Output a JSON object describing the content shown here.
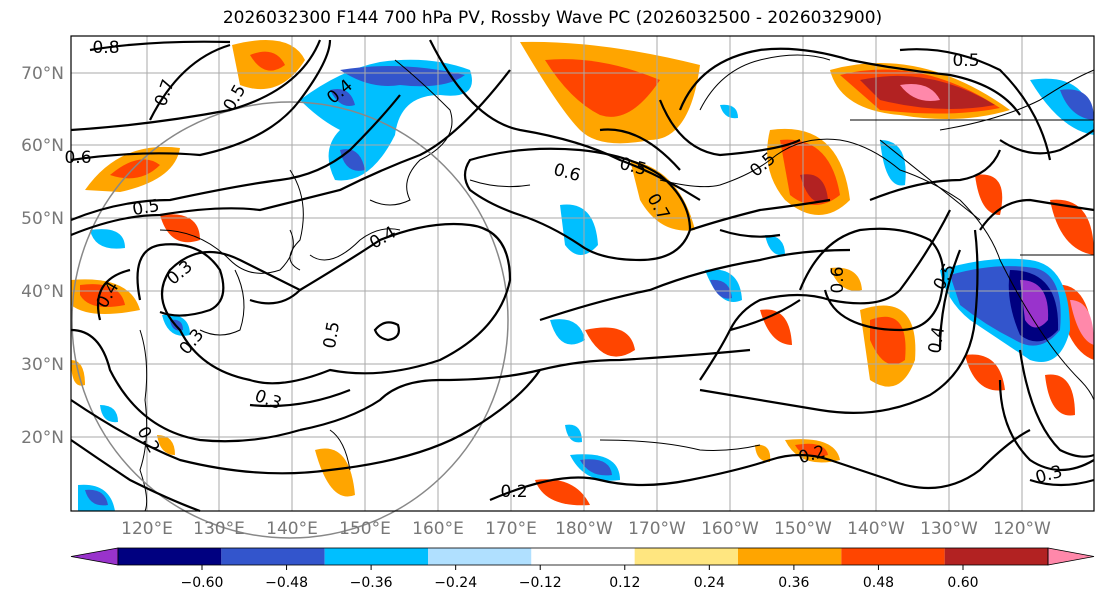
{
  "title": "2026032300 F144 700 hPa PV, Rossby Wave PC (2026032500 - 2026032900)",
  "map": {
    "lat_labels": [
      "70°N",
      "60°N",
      "50°N",
      "40°N",
      "30°N",
      "20°N"
    ],
    "lon_labels": [
      "120°E",
      "130°E",
      "140°E",
      "150°E",
      "160°E",
      "170°E",
      "180°W",
      "170°W",
      "160°W",
      "150°W",
      "140°W",
      "130°W",
      "120°W"
    ],
    "contour_labels": [
      "0.8",
      "0.7",
      "0.5",
      "0.4",
      "0.6",
      "0.5",
      "0.3",
      "0.4",
      "0.3",
      "0.4",
      "0.5",
      "0.3",
      "0.2",
      "0.6",
      "0.5",
      "0.7",
      "0.6",
      "0.5",
      "0.4",
      "0.2",
      "0.3",
      "0.2",
      "0.5",
      "0.5"
    ]
  },
  "colorbar": {
    "ticks": [
      "−0.60",
      "−0.48",
      "−0.36",
      "−0.24",
      "−0.12",
      "0.12",
      "0.24",
      "0.36",
      "0.48",
      "0.60"
    ],
    "colors": [
      "#9933cc",
      "#000080",
      "#3355cc",
      "#00bfff",
      "#b0e0ff",
      "#ffffff",
      "#ffe680",
      "#ffa500",
      "#ff4500",
      "#b22222",
      "#ff88aa"
    ]
  }
}
